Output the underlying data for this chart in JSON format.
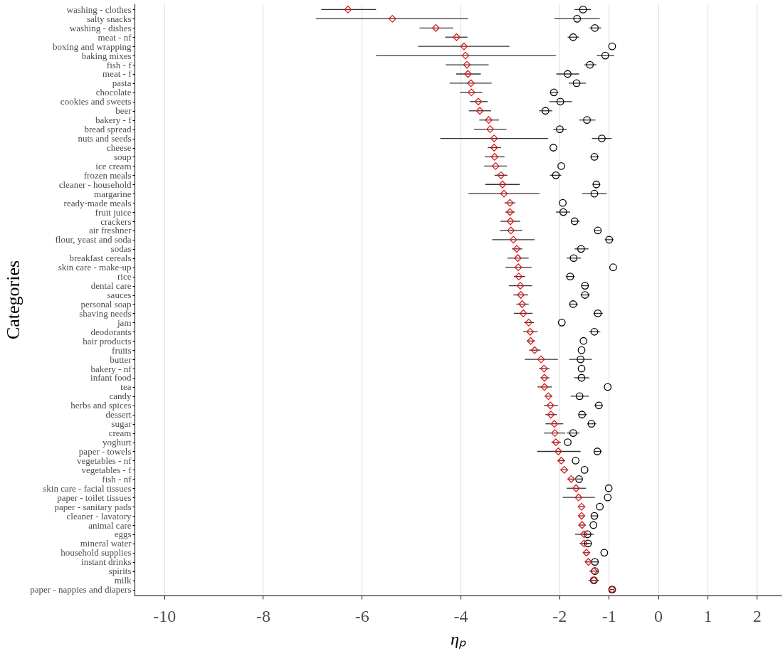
{
  "chart_data": {
    "type": "scatter",
    "orientation": "horizontal",
    "xlabel": "ηₚ",
    "ylabel": "Categories",
    "categories": [
      "washing - clothes",
      "salty snacks",
      "washing - dishes",
      "meat - nf",
      "boxing and wrapping",
      "baking mixes",
      "fish - f",
      "meat - f",
      "pasta",
      "chocolate",
      "cookies and sweets",
      "beer",
      "bakery - f",
      "bread spread",
      "nuts and seeds",
      "cheese",
      "soup",
      "ice cream",
      "frozen meals",
      "cleaner - household",
      "margarine",
      "ready-made meals",
      "fruit juice",
      "crackers",
      "air freshner",
      "flour, yeast and soda",
      "sodas",
      "breakfast cereals",
      "skin care - make-up",
      "rice",
      "dental care",
      "sauces",
      "personal soap",
      "shaving needs",
      "jam",
      "deodorants",
      "hair products",
      "fruits",
      "butter",
      "bakery - nf",
      "infant food",
      "tea",
      "candy",
      "herbs and spices",
      "dessert",
      "sugar",
      "cream",
      "yoghurt",
      "paper - towels",
      "vegetables - nf",
      "vegetables - f",
      "fish - nf",
      "skin care - facial tissues",
      "paper - toilet tissues",
      "paper - sanitary pads",
      "cleaner - lavatory",
      "animal care",
      "eggs",
      "mineral water",
      "household supplies",
      "instant drinks",
      "spirits",
      "milk",
      "paper - nappies and diapers"
    ],
    "series": [
      {
        "color": "#000000",
        "marker": "circle",
        "values": [
          -1.52,
          -1.64,
          -1.28,
          -1.72,
          -0.93,
          -1.07,
          -1.38,
          -1.83,
          -1.65,
          -2.11,
          -1.98,
          -2.28,
          -1.44,
          -1.99,
          -1.14,
          -2.12,
          -1.29,
          -1.96,
          -2.07,
          -1.25,
          -1.29,
          -1.93,
          -1.92,
          -1.69,
          -1.22,
          -0.99,
          -1.56,
          -1.71,
          -0.91,
          -1.78,
          -1.48,
          -1.48,
          -1.72,
          -1.22,
          -1.95,
          -1.29,
          -1.51,
          -1.55,
          -1.57,
          -1.55,
          -1.55,
          -1.02,
          -1.59,
          -1.2,
          -1.54,
          -1.35,
          -1.72,
          -1.83,
          -1.23,
          -1.67,
          -1.49,
          -1.6,
          -1.0,
          -1.02,
          -1.18,
          -1.29,
          -1.31,
          -1.43,
          -1.42,
          -1.09,
          -1.28,
          -1.28,
          -1.3,
          -0.93
        ],
        "errors": [
          [
            -1.69,
            -1.36
          ],
          [
            -2.1,
            -1.18
          ],
          [
            -1.39,
            -1.15
          ],
          [
            -1.83,
            -1.6
          ],
          null,
          [
            -1.24,
            -0.89
          ],
          [
            -1.49,
            -1.25
          ],
          [
            -2.06,
            -1.6
          ],
          [
            -1.81,
            -1.46
          ],
          [
            -2.19,
            -2.02
          ],
          [
            -2.2,
            -1.74
          ],
          [
            -2.41,
            -2.14
          ],
          [
            -1.6,
            -1.27
          ],
          [
            -2.12,
            -1.85
          ],
          [
            -1.34,
            -0.94
          ],
          null,
          [
            -1.37,
            -1.2
          ],
          null,
          [
            -2.19,
            -1.96
          ],
          [
            -1.32,
            -1.17
          ],
          [
            -1.54,
            -1.04
          ],
          null,
          [
            -2.07,
            -1.78
          ],
          [
            -1.76,
            -1.59
          ],
          [
            -1.28,
            -1.15
          ],
          [
            -1.08,
            -0.9
          ],
          [
            -1.69,
            -1.41
          ],
          [
            -1.85,
            -1.56
          ],
          null,
          [
            -1.87,
            -1.69
          ],
          [
            -1.55,
            -1.4
          ],
          [
            -1.57,
            -1.38
          ],
          [
            -1.8,
            -1.62
          ],
          [
            -1.31,
            -1.12
          ],
          null,
          [
            -1.4,
            -1.17
          ],
          null,
          null,
          [
            -1.8,
            -1.34
          ],
          null,
          [
            -1.7,
            -1.39
          ],
          null,
          [
            -1.77,
            -1.4
          ],
          [
            -1.29,
            -1.12
          ],
          [
            -1.61,
            -1.44
          ],
          [
            -1.43,
            -1.25
          ],
          [
            -1.85,
            -1.59
          ],
          null,
          [
            -1.3,
            -1.14
          ],
          null,
          null,
          [
            -1.65,
            -1.54
          ],
          null,
          null,
          null,
          [
            -1.35,
            -1.22
          ],
          null,
          [
            -1.51,
            -1.35
          ],
          [
            -1.49,
            -1.34
          ],
          null,
          [
            -1.34,
            -1.21
          ],
          null,
          null,
          null
        ]
      },
      {
        "color": "#e31a1c",
        "marker": "diamond",
        "values": [
          -6.28,
          -5.38,
          -4.5,
          -4.08,
          -3.93,
          -3.9,
          -3.87,
          -3.85,
          -3.79,
          -3.78,
          -3.64,
          -3.61,
          -3.43,
          -3.4,
          -3.32,
          -3.32,
          -3.31,
          -3.29,
          -3.18,
          -3.15,
          -3.12,
          -3.0,
          -3.0,
          -2.99,
          -2.98,
          -2.93,
          -2.86,
          -2.84,
          -2.83,
          -2.82,
          -2.79,
          -2.78,
          -2.75,
          -2.73,
          -2.62,
          -2.59,
          -2.58,
          -2.5,
          -2.37,
          -2.31,
          -2.3,
          -2.3,
          -2.22,
          -2.18,
          -2.17,
          -2.1,
          -2.09,
          -2.07,
          -2.02,
          -1.96,
          -1.9,
          -1.76,
          -1.66,
          -1.61,
          -1.55,
          -1.55,
          -1.54,
          -1.5,
          -1.5,
          -1.45,
          -1.41,
          -1.3,
          -1.3,
          -0.93
        ],
        "errors": [
          [
            -6.82,
            -5.71
          ],
          [
            -6.93,
            -3.85
          ],
          [
            -4.83,
            -4.15
          ],
          [
            -4.31,
            -3.86
          ],
          [
            -4.86,
            -3.01
          ],
          [
            -5.71,
            -2.07
          ],
          [
            -4.3,
            -3.43
          ],
          [
            -4.09,
            -3.59
          ],
          [
            -4.22,
            -3.37
          ],
          [
            -4.01,
            -3.56
          ],
          [
            -3.81,
            -3.45
          ],
          [
            -3.83,
            -3.38
          ],
          [
            -3.62,
            -3.22
          ],
          [
            -3.73,
            -3.07
          ],
          [
            -4.41,
            -2.23
          ],
          [
            -3.45,
            -3.18
          ],
          [
            -3.51,
            -3.11
          ],
          [
            -3.52,
            -3.06
          ],
          [
            -3.31,
            -3.05
          ],
          [
            -3.5,
            -2.8
          ],
          [
            -3.84,
            -2.4
          ],
          [
            -3.11,
            -2.89
          ],
          [
            -3.09,
            -2.9
          ],
          [
            -3.19,
            -2.79
          ],
          [
            -3.2,
            -2.75
          ],
          [
            -3.36,
            -2.5
          ],
          [
            -2.96,
            -2.75
          ],
          [
            -3.05,
            -2.62
          ],
          [
            -3.09,
            -2.56
          ],
          [
            -2.92,
            -2.69
          ],
          [
            -3.02,
            -2.55
          ],
          [
            -2.93,
            -2.63
          ],
          [
            -2.87,
            -2.62
          ],
          [
            -2.92,
            -2.54
          ],
          [
            -2.71,
            -2.51
          ],
          [
            -2.73,
            -2.44
          ],
          [
            -2.66,
            -2.49
          ],
          [
            -2.61,
            -2.38
          ],
          [
            -2.7,
            -2.03
          ],
          [
            -2.41,
            -2.2
          ],
          [
            -2.38,
            -2.2
          ],
          [
            -2.44,
            -2.15
          ],
          [
            -2.29,
            -2.15
          ],
          [
            -2.31,
            -2.03
          ],
          [
            -2.28,
            -2.05
          ],
          [
            -2.28,
            -1.92
          ],
          [
            -2.31,
            -1.88
          ],
          [
            -2.16,
            -1.97
          ],
          [
            -2.45,
            -1.57
          ],
          [
            -2.02,
            -1.9
          ],
          [
            -1.98,
            -1.82
          ],
          [
            -1.81,
            -1.7
          ],
          [
            -1.85,
            -1.46
          ],
          [
            -1.93,
            -1.28
          ],
          [
            -1.6,
            -1.5
          ],
          [
            -1.6,
            -1.5
          ],
          [
            -1.59,
            -1.48
          ],
          [
            -1.68,
            -1.3
          ],
          [
            -1.59,
            -1.39
          ],
          [
            -1.51,
            -1.38
          ],
          [
            -1.47,
            -1.34
          ],
          [
            -1.39,
            -1.21
          ],
          [
            -1.41,
            -1.19
          ],
          [
            -0.97,
            -0.89
          ]
        ]
      }
    ],
    "xlim": [
      -10.6,
      2.5
    ],
    "xticks": [
      -10,
      -8,
      -6,
      -4,
      -2,
      -1,
      0,
      1,
      2
    ],
    "grid": "x"
  }
}
